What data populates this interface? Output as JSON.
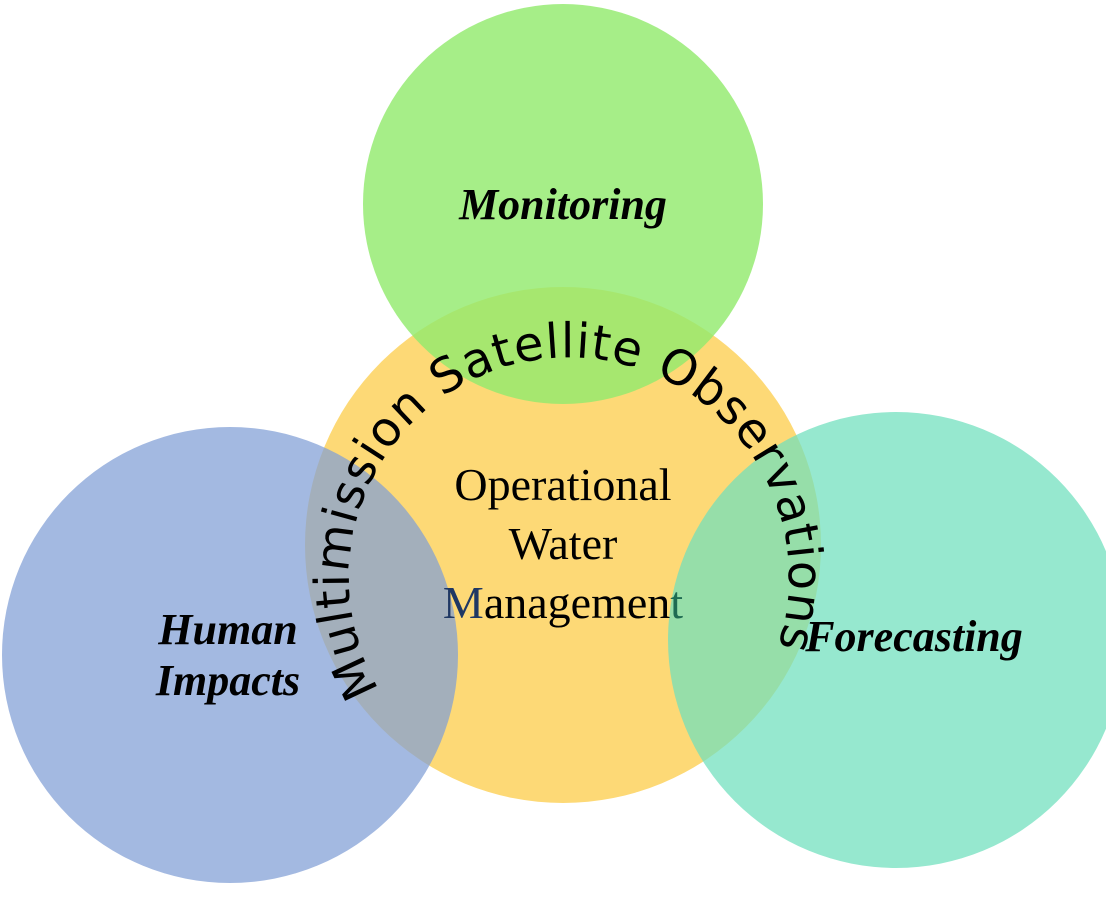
{
  "center": {
    "line1": "Operational",
    "line2": "Water",
    "line3_first": "M",
    "line3_middle": "anagemen",
    "line3_last": "t",
    "fill": "#FDD976"
  },
  "arc_text": "Multimission Satellite Observations",
  "monitoring": {
    "label": "Monitoring",
    "fill": "#9BEC7A"
  },
  "human_impacts": {
    "line1": "Human",
    "line2": "Impacts",
    "fill": "#8EAADB"
  },
  "forecasting": {
    "label": "Forecasting",
    "fill": "#7EE3C2"
  },
  "colors": {
    "center_text": "#000000",
    "m_accent": "#1F3864",
    "t_accent": "#1E6B52"
  }
}
